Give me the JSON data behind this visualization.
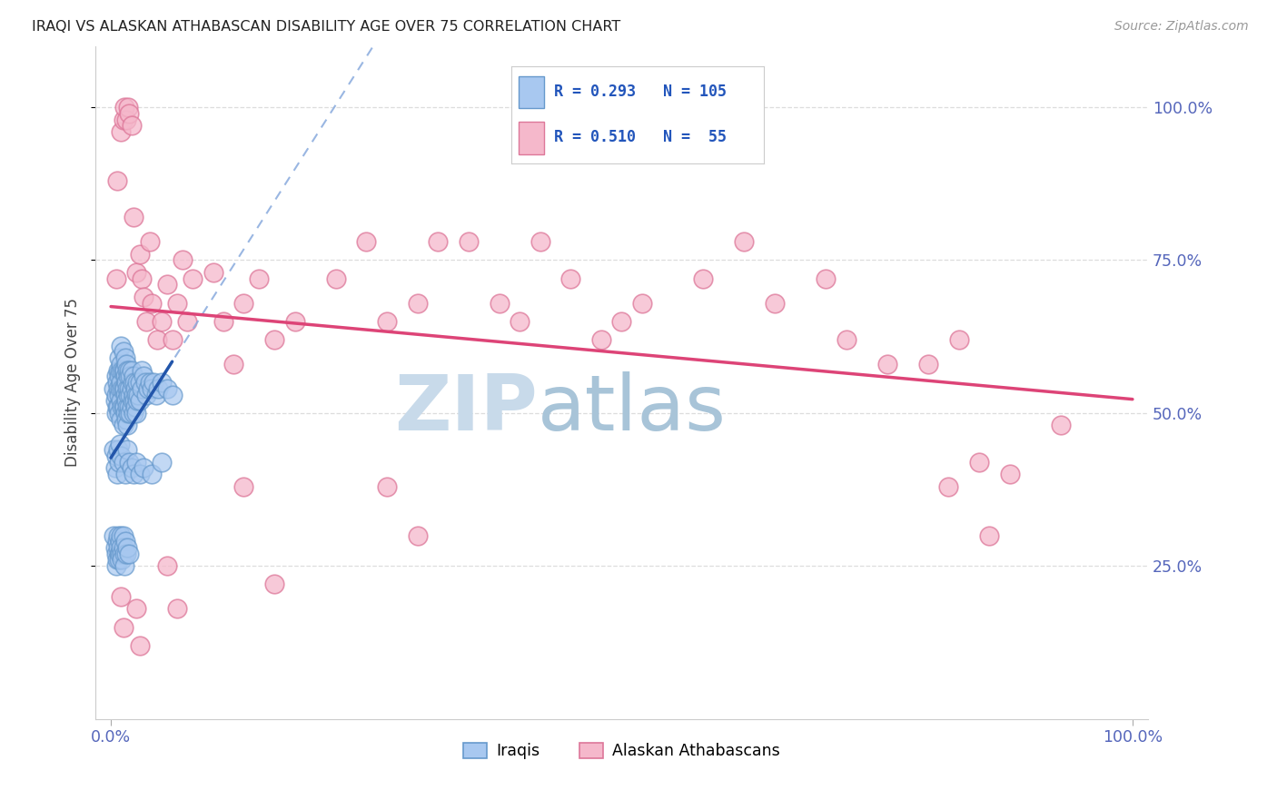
{
  "title": "IRAQI VS ALASKAN ATHABASCAN DISABILITY AGE OVER 75 CORRELATION CHART",
  "source": "Source: ZipAtlas.com",
  "ylabel": "Disability Age Over 75",
  "xlim": [
    -0.015,
    1.015
  ],
  "ylim": [
    0.0,
    1.1
  ],
  "ytick_values": [
    0.25,
    0.5,
    0.75,
    1.0
  ],
  "ytick_labels": [
    "25.0%",
    "50.0%",
    "75.0%",
    "100.0%"
  ],
  "xtick_values": [
    0.0,
    1.0
  ],
  "xtick_labels": [
    "0.0%",
    "100.0%"
  ],
  "legend_iraqi_R": "R = 0.293",
  "legend_iraqi_N": "N = 105",
  "legend_ath_R": "R = 0.510",
  "legend_ath_N": "N =  55",
  "iraqi_color": "#A8C8F0",
  "iraqi_edge": "#6699CC",
  "athabascan_color": "#F5B8CB",
  "athabascan_edge": "#DD7799",
  "iraqi_line_color": "#2255AA",
  "athabascan_line_color": "#DD4477",
  "dashed_line_color": "#88AADD",
  "watermark_zip": "ZIP",
  "watermark_atlas": "atlas",
  "watermark_zip_color": "#C8DAEA",
  "watermark_atlas_color": "#A8C4D8",
  "background_color": "#FFFFFF",
  "grid_color": "#DDDDDD",
  "axis_label_color": "#5566BB",
  "iraqi_x": [
    0.003,
    0.004,
    0.005,
    0.005,
    0.005,
    0.006,
    0.006,
    0.007,
    0.007,
    0.007,
    0.008,
    0.008,
    0.008,
    0.008,
    0.009,
    0.009,
    0.01,
    0.01,
    0.01,
    0.01,
    0.01,
    0.011,
    0.011,
    0.011,
    0.012,
    0.012,
    0.012,
    0.012,
    0.012,
    0.013,
    0.013,
    0.013,
    0.014,
    0.014,
    0.014,
    0.014,
    0.015,
    0.015,
    0.015,
    0.015,
    0.016,
    0.016,
    0.016,
    0.016,
    0.017,
    0.017,
    0.017,
    0.018,
    0.018,
    0.018,
    0.019,
    0.019,
    0.019,
    0.02,
    0.02,
    0.02,
    0.021,
    0.021,
    0.022,
    0.022,
    0.022,
    0.023,
    0.023,
    0.024,
    0.024,
    0.025,
    0.025,
    0.026,
    0.026,
    0.027,
    0.028,
    0.028,
    0.03,
    0.03,
    0.032,
    0.034,
    0.035,
    0.036,
    0.038,
    0.04,
    0.042,
    0.044,
    0.046,
    0.05,
    0.055,
    0.06,
    0.003,
    0.004,
    0.005,
    0.006,
    0.007,
    0.008,
    0.009,
    0.01,
    0.012,
    0.014,
    0.016,
    0.018,
    0.02,
    0.022,
    0.025,
    0.028,
    0.032,
    0.04,
    0.05
  ],
  "iraqi_y": [
    0.54,
    0.52,
    0.56,
    0.53,
    0.5,
    0.55,
    0.51,
    0.57,
    0.54,
    0.51,
    0.59,
    0.56,
    0.53,
    0.5,
    0.57,
    0.54,
    0.61,
    0.58,
    0.55,
    0.52,
    0.49,
    0.57,
    0.54,
    0.51,
    0.6,
    0.57,
    0.54,
    0.51,
    0.48,
    0.57,
    0.54,
    0.51,
    0.59,
    0.56,
    0.53,
    0.5,
    0.58,
    0.55,
    0.52,
    0.49,
    0.57,
    0.54,
    0.51,
    0.48,
    0.56,
    0.53,
    0.5,
    0.57,
    0.54,
    0.51,
    0.56,
    0.53,
    0.5,
    0.57,
    0.54,
    0.51,
    0.55,
    0.52,
    0.56,
    0.53,
    0.5,
    0.55,
    0.52,
    0.54,
    0.51,
    0.53,
    0.5,
    0.55,
    0.52,
    0.53,
    0.55,
    0.52,
    0.57,
    0.54,
    0.56,
    0.55,
    0.53,
    0.54,
    0.55,
    0.54,
    0.55,
    0.53,
    0.54,
    0.55,
    0.54,
    0.53,
    0.44,
    0.41,
    0.43,
    0.4,
    0.44,
    0.42,
    0.45,
    0.43,
    0.42,
    0.4,
    0.44,
    0.42,
    0.41,
    0.4,
    0.42,
    0.4,
    0.41,
    0.4,
    0.42
  ],
  "iraqi_y_low": [
    0.3,
    0.28,
    0.25,
    0.27,
    0.29,
    0.26,
    0.3,
    0.28,
    0.27,
    0.26,
    0.29,
    0.27,
    0.3,
    0.28,
    0.27,
    0.26,
    0.3,
    0.28,
    0.27,
    0.25,
    0.29,
    0.27,
    0.28,
    0.27
  ],
  "iraqi_x_low": [
    0.003,
    0.004,
    0.005,
    0.005,
    0.006,
    0.006,
    0.007,
    0.007,
    0.008,
    0.008,
    0.009,
    0.009,
    0.01,
    0.01,
    0.011,
    0.011,
    0.012,
    0.012,
    0.013,
    0.013,
    0.014,
    0.015,
    0.016,
    0.018
  ],
  "athabascan_x": [
    0.006,
    0.01,
    0.012,
    0.013,
    0.015,
    0.017,
    0.018,
    0.02,
    0.022,
    0.025,
    0.028,
    0.03,
    0.032,
    0.035,
    0.038,
    0.04,
    0.045,
    0.05,
    0.055,
    0.06,
    0.065,
    0.07,
    0.075,
    0.08,
    0.1,
    0.11,
    0.12,
    0.13,
    0.145,
    0.16,
    0.18,
    0.22,
    0.25,
    0.27,
    0.3,
    0.32,
    0.35,
    0.38,
    0.4,
    0.42,
    0.45,
    0.48,
    0.5,
    0.52,
    0.58,
    0.62,
    0.65,
    0.7,
    0.72,
    0.76,
    0.8,
    0.83,
    0.85,
    0.88,
    0.93
  ],
  "athabascan_y": [
    0.88,
    0.96,
    0.98,
    1.0,
    0.98,
    1.0,
    0.99,
    0.97,
    0.82,
    0.73,
    0.76,
    0.72,
    0.69,
    0.65,
    0.78,
    0.68,
    0.62,
    0.65,
    0.71,
    0.62,
    0.68,
    0.75,
    0.65,
    0.72,
    0.73,
    0.65,
    0.58,
    0.68,
    0.72,
    0.62,
    0.65,
    0.72,
    0.78,
    0.65,
    0.68,
    0.78,
    0.78,
    0.68,
    0.65,
    0.78,
    0.72,
    0.62,
    0.65,
    0.68,
    0.72,
    0.78,
    0.68,
    0.72,
    0.62,
    0.58,
    0.58,
    0.62,
    0.42,
    0.4,
    0.48
  ],
  "athabascan_x_low": [
    0.005,
    0.01,
    0.012,
    0.025,
    0.028,
    0.055,
    0.065,
    0.13,
    0.16,
    0.27,
    0.3,
    0.82,
    0.86
  ],
  "athabascan_y_low": [
    0.72,
    0.2,
    0.15,
    0.18,
    0.12,
    0.25,
    0.18,
    0.38,
    0.22,
    0.38,
    0.3,
    0.38,
    0.3
  ]
}
